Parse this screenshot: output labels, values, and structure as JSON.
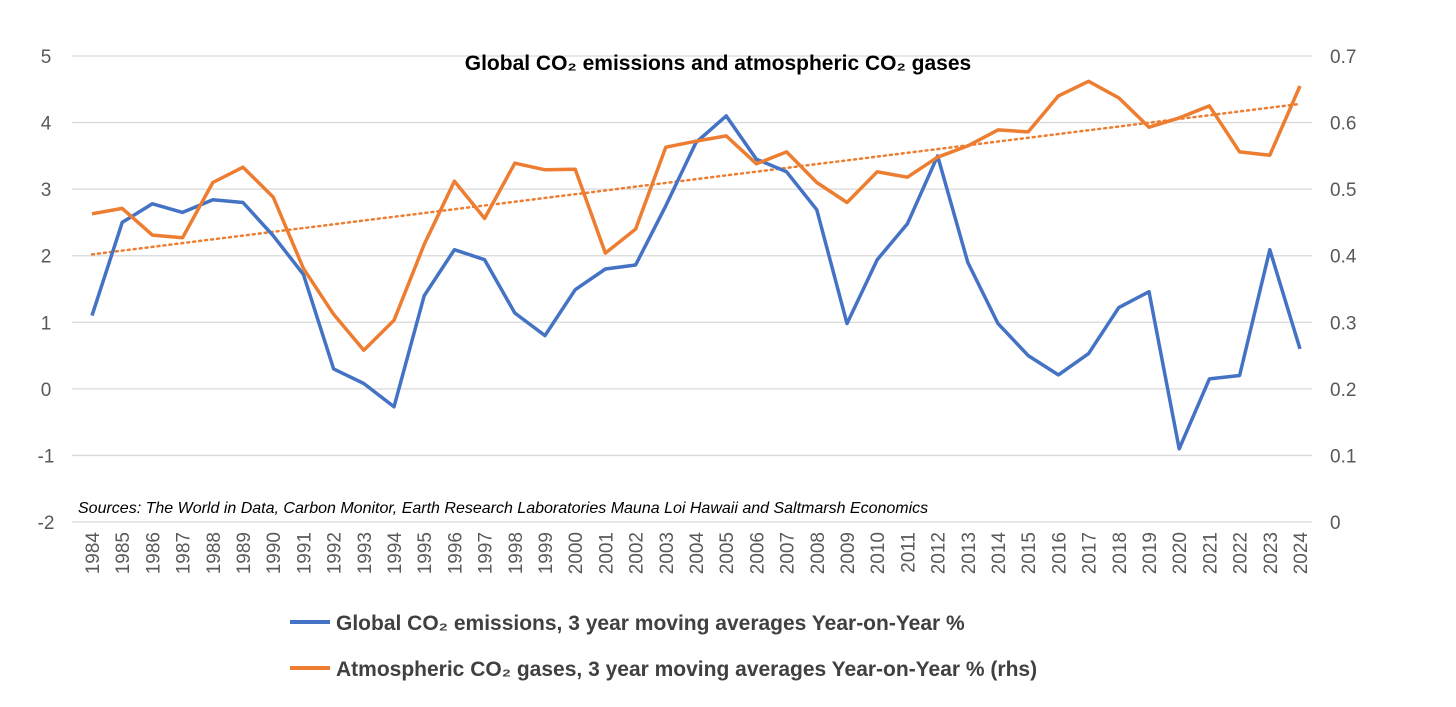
{
  "chart_data": {
    "type": "line",
    "title": "Global CO₂ emissions and atmospheric CO₂ gases",
    "annotation": "Sources: The World in Data, Carbon Monitor, Earth Research Laboratories Mauna Loi Hawaii and Saltmarsh Economics",
    "x": [
      1984,
      1985,
      1986,
      1987,
      1988,
      1989,
      1990,
      1991,
      1992,
      1993,
      1994,
      1995,
      1996,
      1997,
      1998,
      1999,
      2000,
      2001,
      2002,
      2003,
      2004,
      2005,
      2006,
      2007,
      2008,
      2009,
      2010,
      2011,
      2012,
      2013,
      2014,
      2015,
      2016,
      2017,
      2018,
      2019,
      2020,
      2021,
      2022,
      2023,
      2024
    ],
    "y_left": {
      "min": -2,
      "max": 5,
      "ticks": [
        "5",
        "4",
        "3",
        "2",
        "1",
        "0",
        "-1",
        "-2"
      ]
    },
    "y_right": {
      "min": 0,
      "max": 0.7,
      "ticks": [
        "0.7",
        "0.6",
        "0.5",
        "0.4",
        "0.3",
        "0.2",
        "0.1",
        "0"
      ]
    },
    "grid": true,
    "legend_position": "bottom",
    "series": [
      {
        "name": "Global CO₂ emissions, 3 year moving averages Year-on-Year %",
        "axis": "left",
        "color": "#4472C4",
        "values": [
          1.1,
          2.5,
          2.78,
          2.65,
          2.84,
          2.8,
          2.3,
          1.72,
          0.3,
          0.08,
          -0.27,
          1.4,
          2.09,
          1.94,
          1.14,
          0.8,
          1.49,
          1.8,
          1.86,
          2.75,
          3.7,
          4.1,
          3.45,
          3.26,
          2.69,
          0.98,
          1.94,
          2.48,
          3.5,
          1.9,
          0.98,
          0.5,
          0.21,
          0.53,
          1.22,
          1.46,
          -0.9,
          0.15,
          0.2,
          2.09,
          0.6
        ]
      },
      {
        "name": "Atmospheric CO₂ gases, 3 year moving averages Year-on-Year % (rhs)",
        "axis": "right",
        "color": "#ED7D31",
        "values": [
          0.463,
          0.471,
          0.431,
          0.427,
          0.51,
          0.533,
          0.488,
          0.381,
          0.312,
          0.258,
          0.303,
          0.417,
          0.512,
          0.456,
          0.539,
          0.529,
          0.53,
          0.404,
          0.44,
          0.563,
          0.572,
          0.58,
          0.538,
          0.556,
          0.51,
          0.48,
          0.526,
          0.518,
          0.548,
          0.565,
          0.589,
          0.586,
          0.64,
          0.662,
          0.637,
          0.593,
          0.607,
          0.625,
          0.556,
          0.551,
          0.655
        ]
      }
    ],
    "trendline": {
      "series": "Atmospheric CO₂ gases",
      "axis": "right",
      "type": "linear",
      "start": 0.402,
      "end": 0.628,
      "color": "#ED7D31"
    }
  }
}
